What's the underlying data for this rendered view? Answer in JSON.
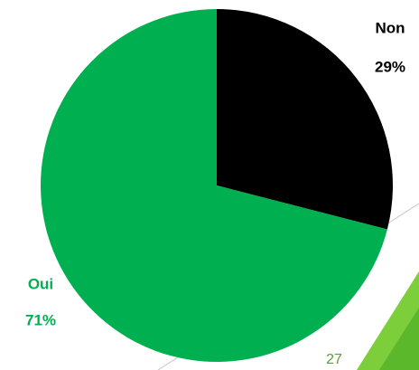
{
  "chart_data": {
    "type": "pie",
    "categories": [
      "Non",
      "Oui"
    ],
    "values": [
      29,
      71
    ],
    "value_labels": [
      "29%",
      "71%"
    ],
    "colors": [
      "#000000",
      "#00b050"
    ],
    "start_angle": 0,
    "direction": "clockwise"
  },
  "page_number": "27"
}
